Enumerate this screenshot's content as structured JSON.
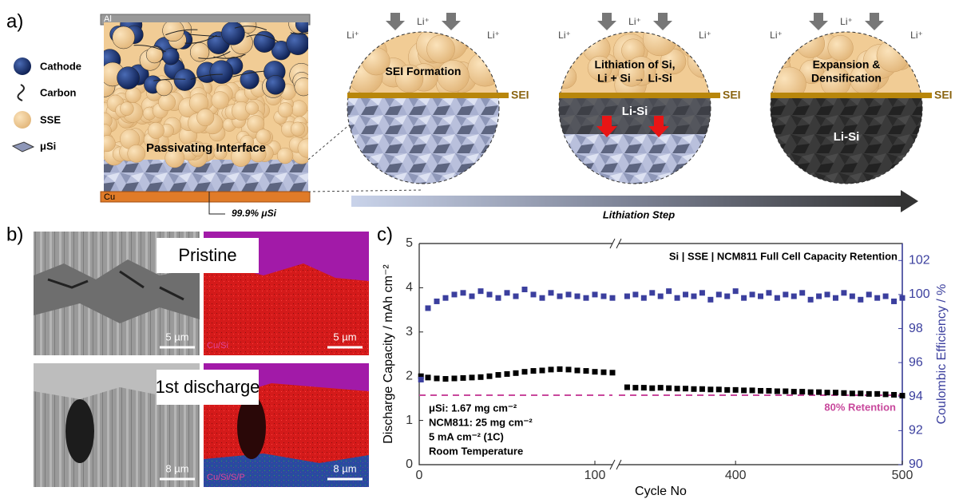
{
  "panel_a": {
    "label": "a)",
    "legend": [
      "Cathode",
      "Carbon",
      "SSE",
      "μSi"
    ],
    "cell": {
      "top": "Al",
      "bottom": "Cu",
      "middle": "Passivating Interface",
      "note": "99.9% μSi"
    },
    "ion": "Li⁺",
    "steps": [
      {
        "title": "SEI Formation",
        "sei": "SEI"
      },
      {
        "title": "Lithiation of Si,\nLi + Si → Li-Si",
        "sei": "SEI",
        "inner": "Li-Si"
      },
      {
        "title": "Expansion &\nDensification",
        "sei": "SEI",
        "inner": "Li-Si"
      }
    ],
    "arrow_label": "Lithiation Step"
  },
  "panel_b": {
    "label": "b)",
    "rows": [
      {
        "title": "Pristine",
        "scale_sem": "5 µm",
        "scale_map": "5 µm",
        "map_key": "Cu/Si"
      },
      {
        "title": "1st discharge",
        "scale_sem": "8 µm",
        "scale_map": "8 µm",
        "map_key": "Cu/Si/S/P"
      }
    ]
  },
  "panel_c": {
    "label": "c)",
    "chart_data": {
      "type": "scatter",
      "title": "Si | SSE | NCM811 Full Cell Capacity Retention",
      "x_label": "Cycle No",
      "y_label": "Discharge Capacity / mAh cm⁻²",
      "y2_label": "Coulombic Efficiency / %",
      "xlim": [
        [
          0,
          110
        ],
        [
          330,
          500
        ]
      ],
      "xticks": [
        0,
        100,
        400,
        500
      ],
      "ylim": [
        0,
        5
      ],
      "yticks": [
        0,
        1,
        2,
        3,
        4,
        5
      ],
      "y2lim": [
        90,
        103
      ],
      "y2ticks": [
        90,
        92,
        94,
        96,
        98,
        100,
        102
      ],
      "annotations": [
        "μSi: 1.67 mg cm⁻²",
        "NCM811: 25 mg cm⁻²",
        "5 mA cm⁻² (1C)",
        "Room Temperature"
      ],
      "reference": {
        "name": "80% Retention",
        "value": 1.57,
        "color": "#c8489c"
      },
      "x": [
        1,
        5,
        10,
        15,
        20,
        25,
        30,
        35,
        40,
        45,
        50,
        55,
        60,
        65,
        70,
        75,
        80,
        85,
        90,
        95,
        100,
        105,
        110,
        335,
        340,
        345,
        350,
        355,
        360,
        365,
        370,
        375,
        380,
        385,
        390,
        395,
        400,
        405,
        410,
        415,
        420,
        425,
        430,
        435,
        440,
        445,
        450,
        455,
        460,
        465,
        470,
        475,
        480,
        485,
        490,
        495,
        500
      ],
      "series": [
        {
          "name": "Discharge Capacity",
          "color": "#000000",
          "values": [
            2.0,
            1.97,
            1.95,
            1.94,
            1.95,
            1.96,
            1.97,
            1.98,
            2.0,
            2.03,
            2.05,
            2.07,
            2.1,
            2.12,
            2.13,
            2.15,
            2.16,
            2.15,
            2.13,
            2.12,
            2.1,
            2.09,
            2.08,
            1.75,
            1.74,
            1.74,
            1.73,
            1.74,
            1.73,
            1.72,
            1.72,
            1.71,
            1.71,
            1.7,
            1.7,
            1.69,
            1.69,
            1.68,
            1.68,
            1.67,
            1.67,
            1.66,
            1.66,
            1.65,
            1.65,
            1.64,
            1.64,
            1.63,
            1.63,
            1.62,
            1.61,
            1.61,
            1.6,
            1.6,
            1.59,
            1.58,
            1.56
          ]
        },
        {
          "name": "Coulombic Efficiency",
          "color": "#3b3f9e",
          "axis": "y2",
          "values": [
            95.0,
            99.2,
            99.6,
            99.8,
            100.0,
            100.1,
            99.9,
            100.2,
            100.0,
            99.8,
            100.1,
            99.9,
            100.3,
            100.0,
            99.8,
            100.1,
            99.9,
            100.0,
            99.9,
            99.8,
            100.0,
            99.9,
            99.8,
            99.9,
            100.0,
            99.8,
            100.1,
            99.9,
            100.2,
            99.8,
            100.0,
            99.9,
            100.1,
            99.7,
            100.0,
            99.9,
            100.2,
            99.8,
            100.0,
            99.9,
            100.1,
            99.8,
            100.0,
            99.9,
            100.1,
            99.7,
            99.9,
            100.0,
            99.8,
            100.1,
            99.9,
            99.7,
            100.0,
            99.8,
            99.9,
            99.6,
            99.8
          ]
        }
      ]
    }
  }
}
